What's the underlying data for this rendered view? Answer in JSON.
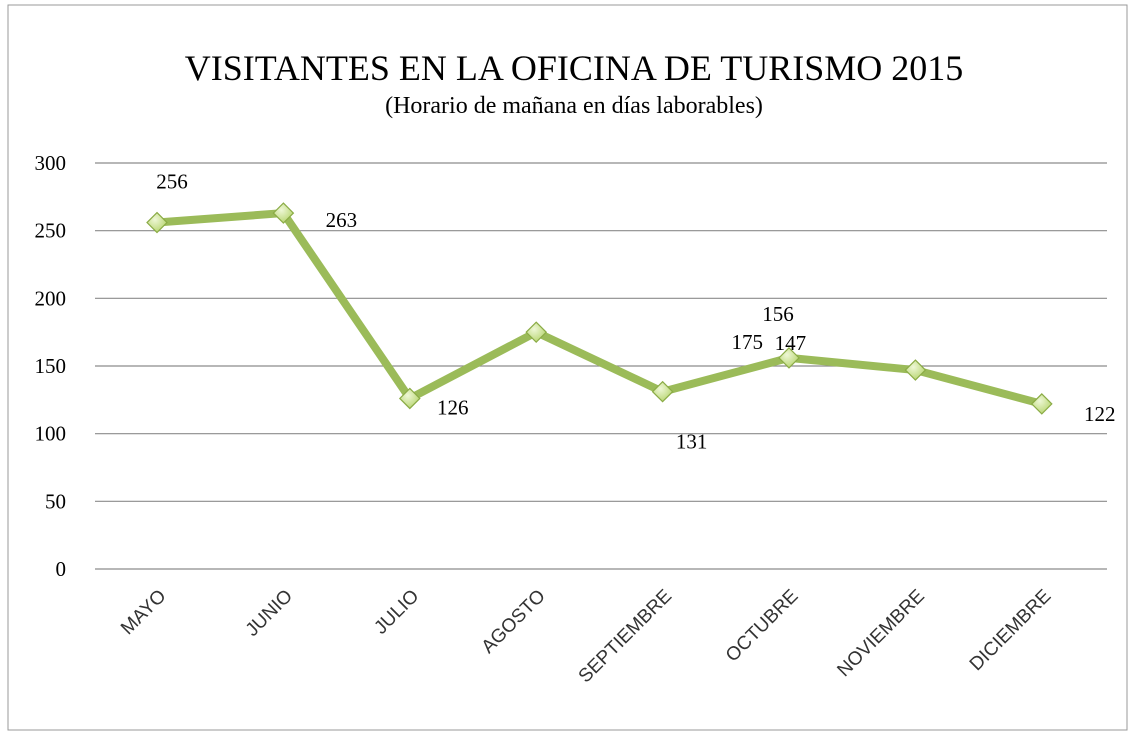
{
  "chart_data": {
    "type": "line",
    "title": "VISITANTES EN LA OFICINA DE TURISMO 2015",
    "subtitle": "(Horario de mañana en días laborables)",
    "categories": [
      "MAYO",
      "JUNIO",
      "JULIO",
      "AGOSTO",
      "SEPTIEMBRE",
      "OCTUBRE",
      "NOVIEMBRE",
      "DICIEMBRE"
    ],
    "values": [
      256,
      263,
      126,
      175,
      131,
      156,
      147,
      122
    ],
    "color": "#9bbb59",
    "ylim": [
      0,
      300
    ],
    "yticks": [
      0,
      50,
      100,
      150,
      200,
      250,
      300
    ],
    "grid": true
  }
}
